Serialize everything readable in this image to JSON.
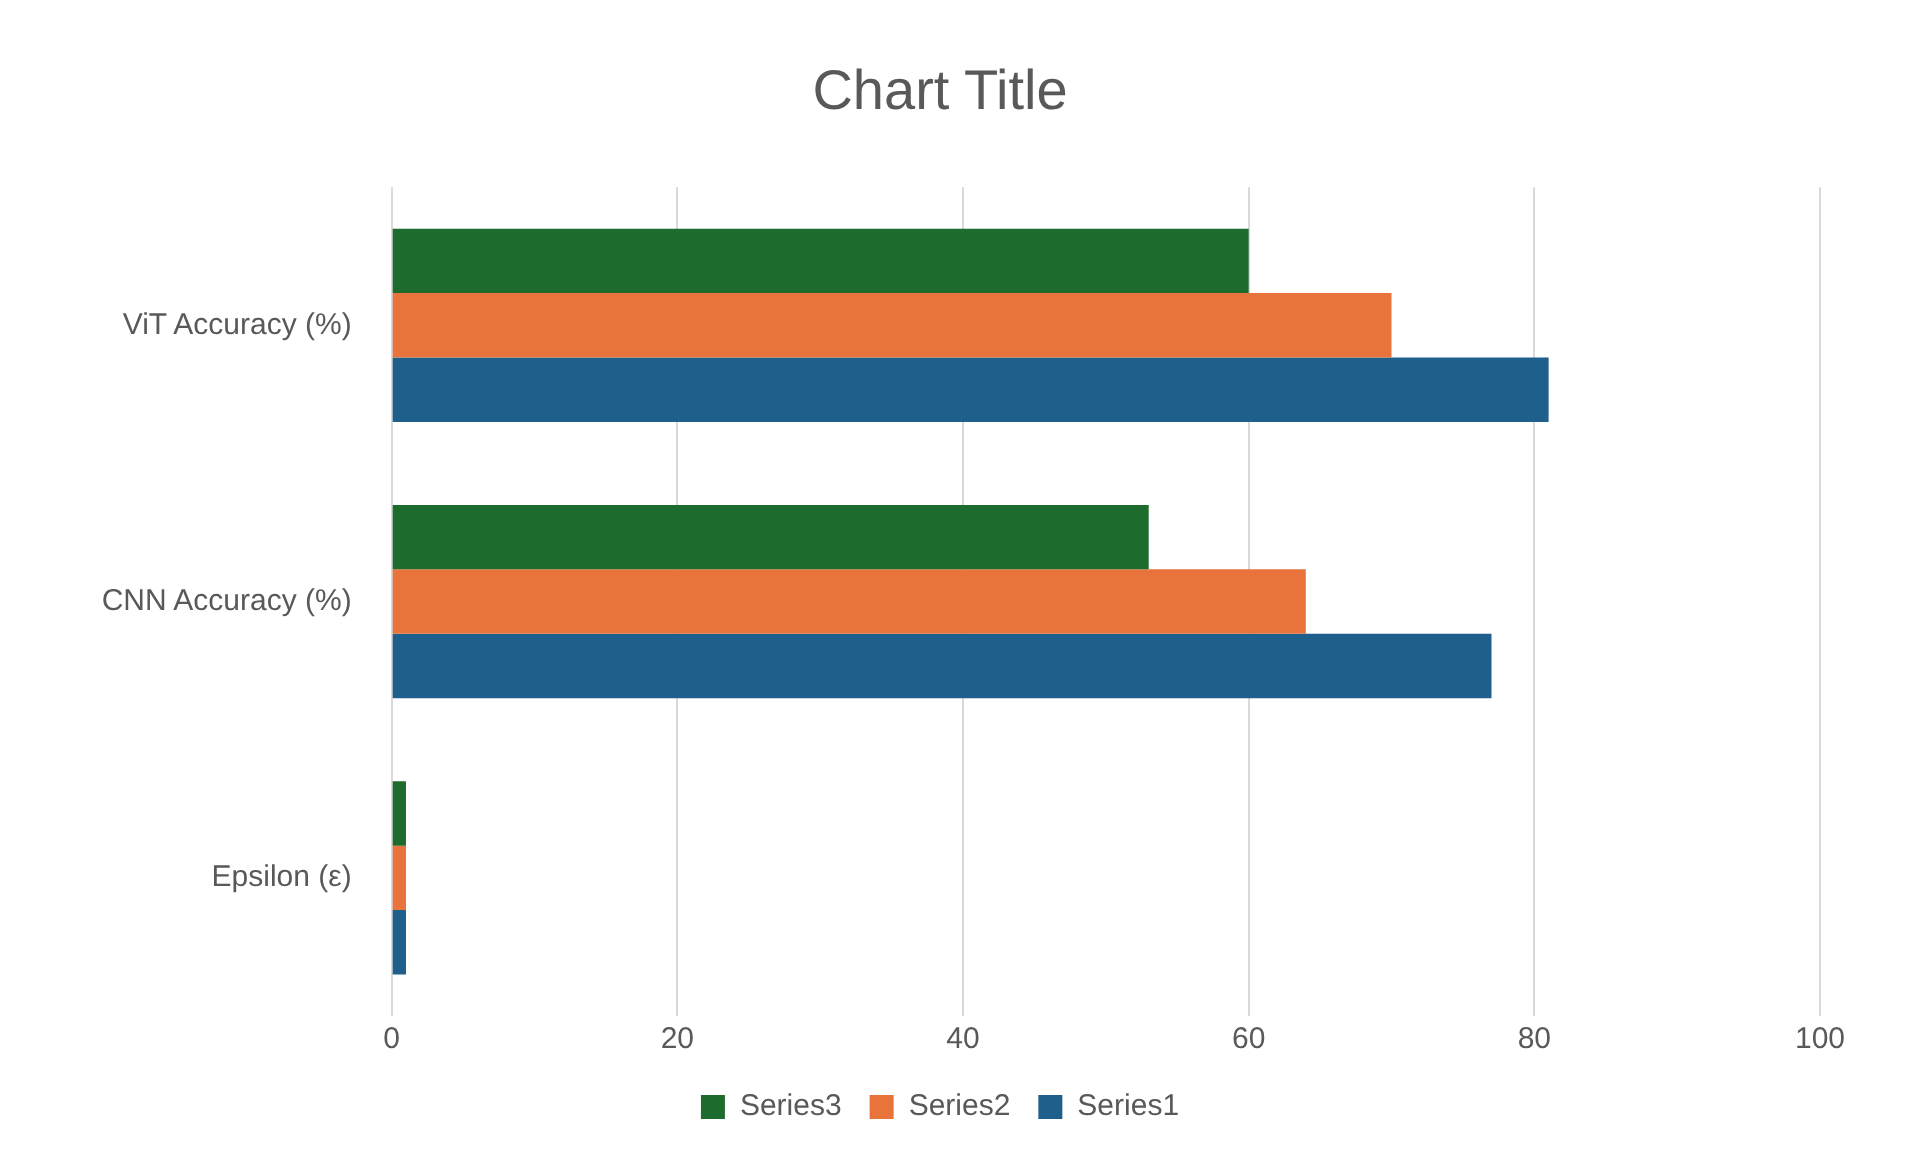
{
  "chart_data": {
    "type": "bar",
    "orientation": "horizontal",
    "title": "Chart Title",
    "categories": [
      "ViT Accuracy (%)",
      "CNN Accuracy (%)",
      "Epsilon (ε)"
    ],
    "series": [
      {
        "name": "Series3",
        "color": "#1e6b2e",
        "values": [
          60,
          53,
          1
        ]
      },
      {
        "name": "Series2",
        "color": "#e8743b",
        "values": [
          70,
          64,
          1
        ]
      },
      {
        "name": "Series1",
        "color": "#1f5f8b",
        "values": [
          81,
          77,
          1
        ]
      }
    ],
    "xlim": [
      0,
      100
    ],
    "xticks": [
      0,
      20,
      40,
      60,
      80,
      100
    ],
    "grid": "x",
    "legend": "bottom"
  }
}
